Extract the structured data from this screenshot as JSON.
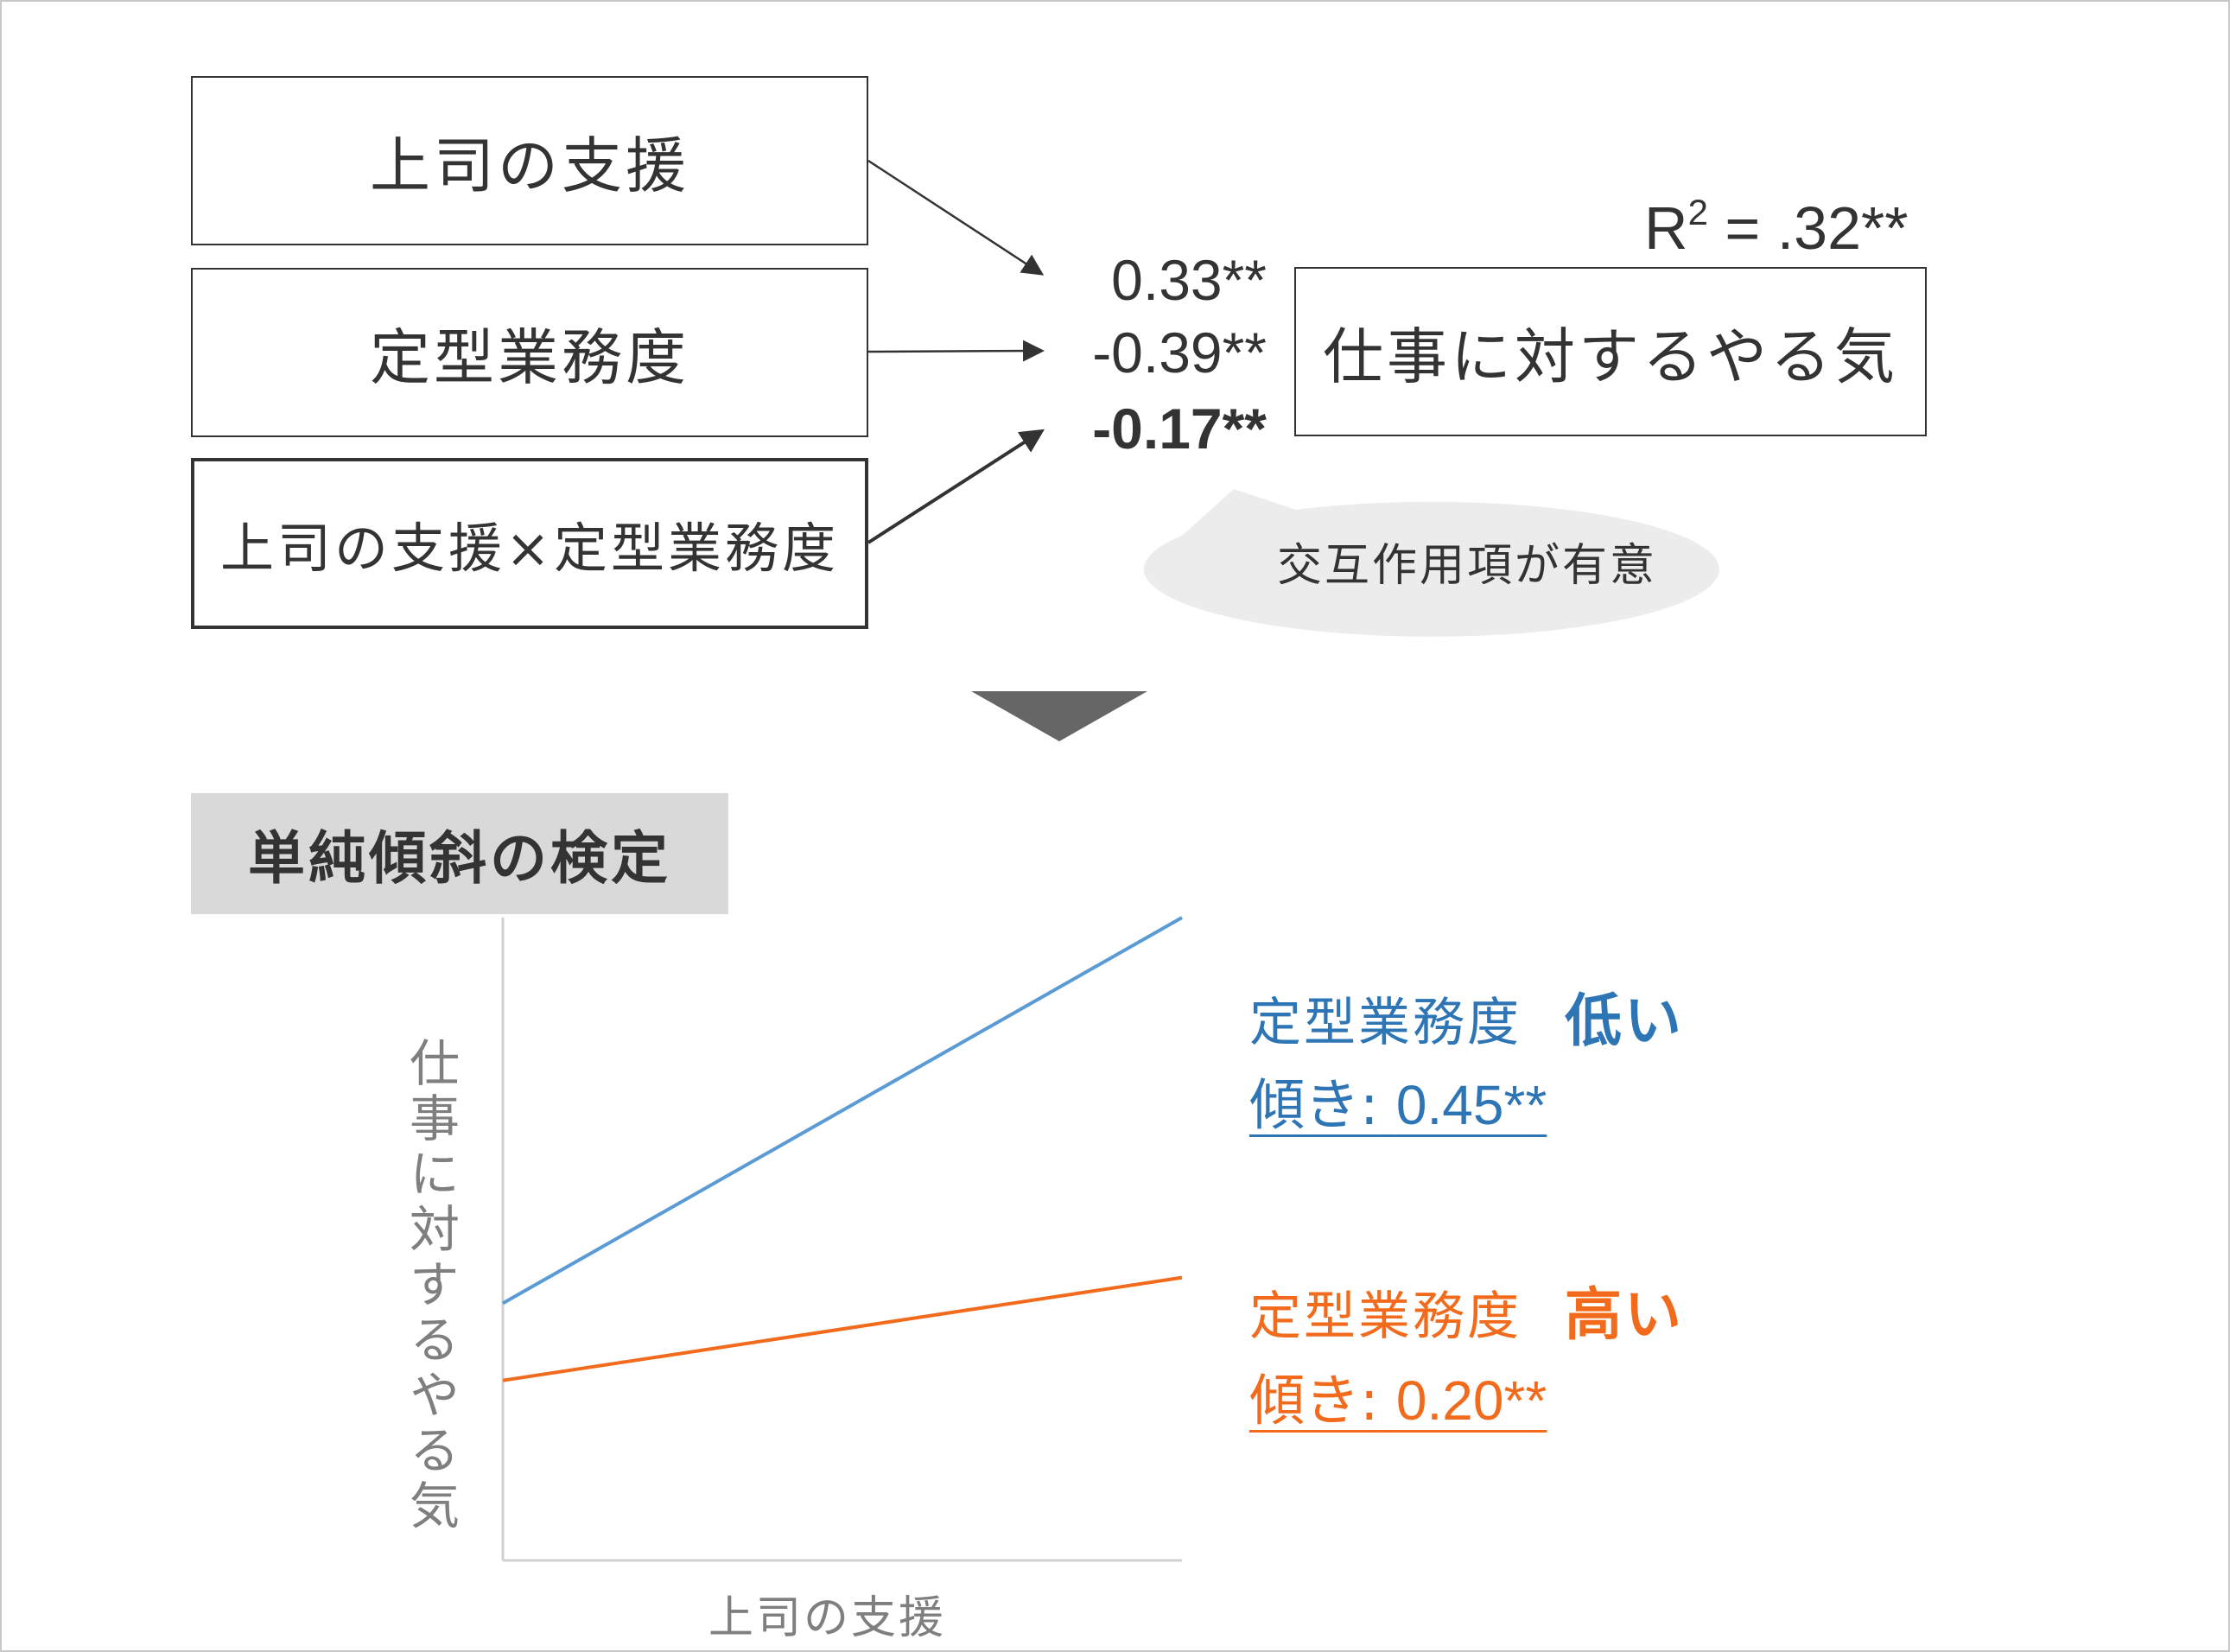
{
  "model": {
    "predictors": [
      {
        "label": "上司の支援",
        "coef": "0.33**",
        "bold": false
      },
      {
        "label": "定型業務度",
        "coef": "-0.39**",
        "bold": false
      },
      {
        "label": "上司の支援×定型業務度",
        "coef": "-0.17**",
        "bold": true
      }
    ],
    "outcome": "仕事に対するやる気",
    "r2_prefix": "R",
    "r2_sup": "2",
    "r2_value": " = .32**",
    "bubble": "交互作用項が有意"
  },
  "section_title": "単純傾斜の検定",
  "chart_data": {
    "type": "line",
    "xlabel": "上司の支援",
    "ylabel": "仕事に対するやる気",
    "x": [
      0,
      1
    ],
    "ylim": [
      0,
      1
    ],
    "series": [
      {
        "name_prefix": "定型業務度",
        "name_emph": "低い",
        "slope_label": "傾き:",
        "slope_value": "0.45**",
        "values": [
          0.4,
          1.0
        ],
        "color": "#5b9bd5",
        "label_color": "#2e75b6"
      },
      {
        "name_prefix": "定型業務度",
        "name_emph": "高い",
        "slope_label": "傾き:",
        "slope_value": "0.20**",
        "values": [
          0.28,
          0.44
        ],
        "color": "#f26b1d",
        "label_color": "#f26b1d"
      }
    ]
  },
  "colors": {
    "text": "#333333",
    "axis": "#d0d0d0",
    "bubble": "#ececec",
    "arrow_down": "#666666",
    "label_bg": "#d9d9d9"
  }
}
